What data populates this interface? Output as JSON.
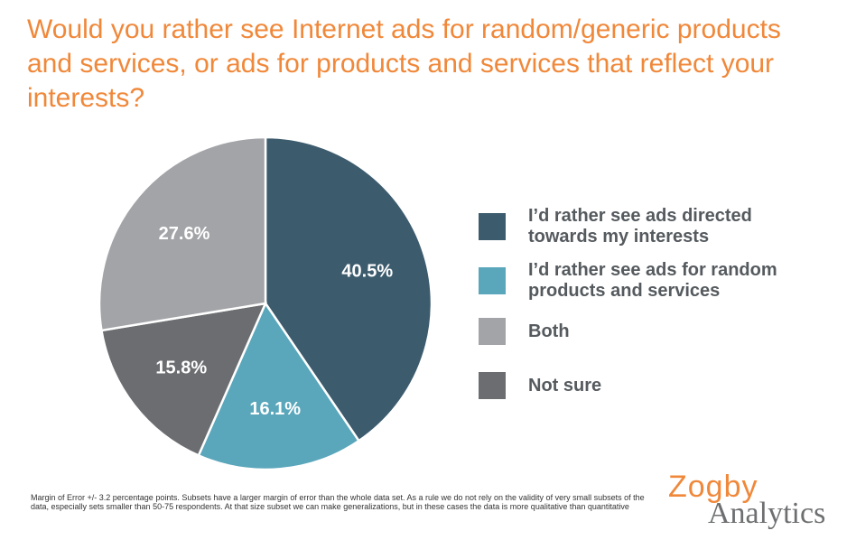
{
  "chart_data": {
    "type": "pie",
    "title": "Would you rather see Internet ads for random/generic products and services, or ads for products and services that reflect your interests?",
    "slices": [
      {
        "label": "I’d rather see ads directed\ntowards my interests",
        "value": 40.5,
        "value_label": "40.5%",
        "color": "#3c5b6d"
      },
      {
        "label": "I’d rather see ads for random\nproducts and services",
        "value": 16.1,
        "value_label": "16.1%",
        "color": "#5aa6bb"
      },
      {
        "label": "Not sure",
        "value": 15.8,
        "value_label": "15.8%",
        "color": "#6b6d70"
      },
      {
        "label": "Both",
        "value": 27.6,
        "value_label": "27.6%",
        "color": "#a3a4a8"
      }
    ],
    "legend_order": [
      "I’d rather see ads directed\ntowards my interests",
      "I’d rather see ads for random\nproducts and services",
      "Both",
      "Not sure"
    ],
    "legend_position": "right",
    "start": "top",
    "direction": "clockwise"
  },
  "footnote": "Margin of Error +/- 3.2 percentage points. Subsets have a larger margin of error than the whole data set. As a rule we do not rely on the validity of very small subsets of the data, especially sets smaller than 50-75 respondents. At that size subset we can make generalizations, but in these cases the data is more qualitative than quantitative",
  "logo": {
    "line1": "Zogby",
    "line2": "Analytics",
    "color1": "#f0883a",
    "color2": "#6d6f71"
  },
  "colors": {
    "title": "#f0883a",
    "legend_text": "#555a5e"
  }
}
